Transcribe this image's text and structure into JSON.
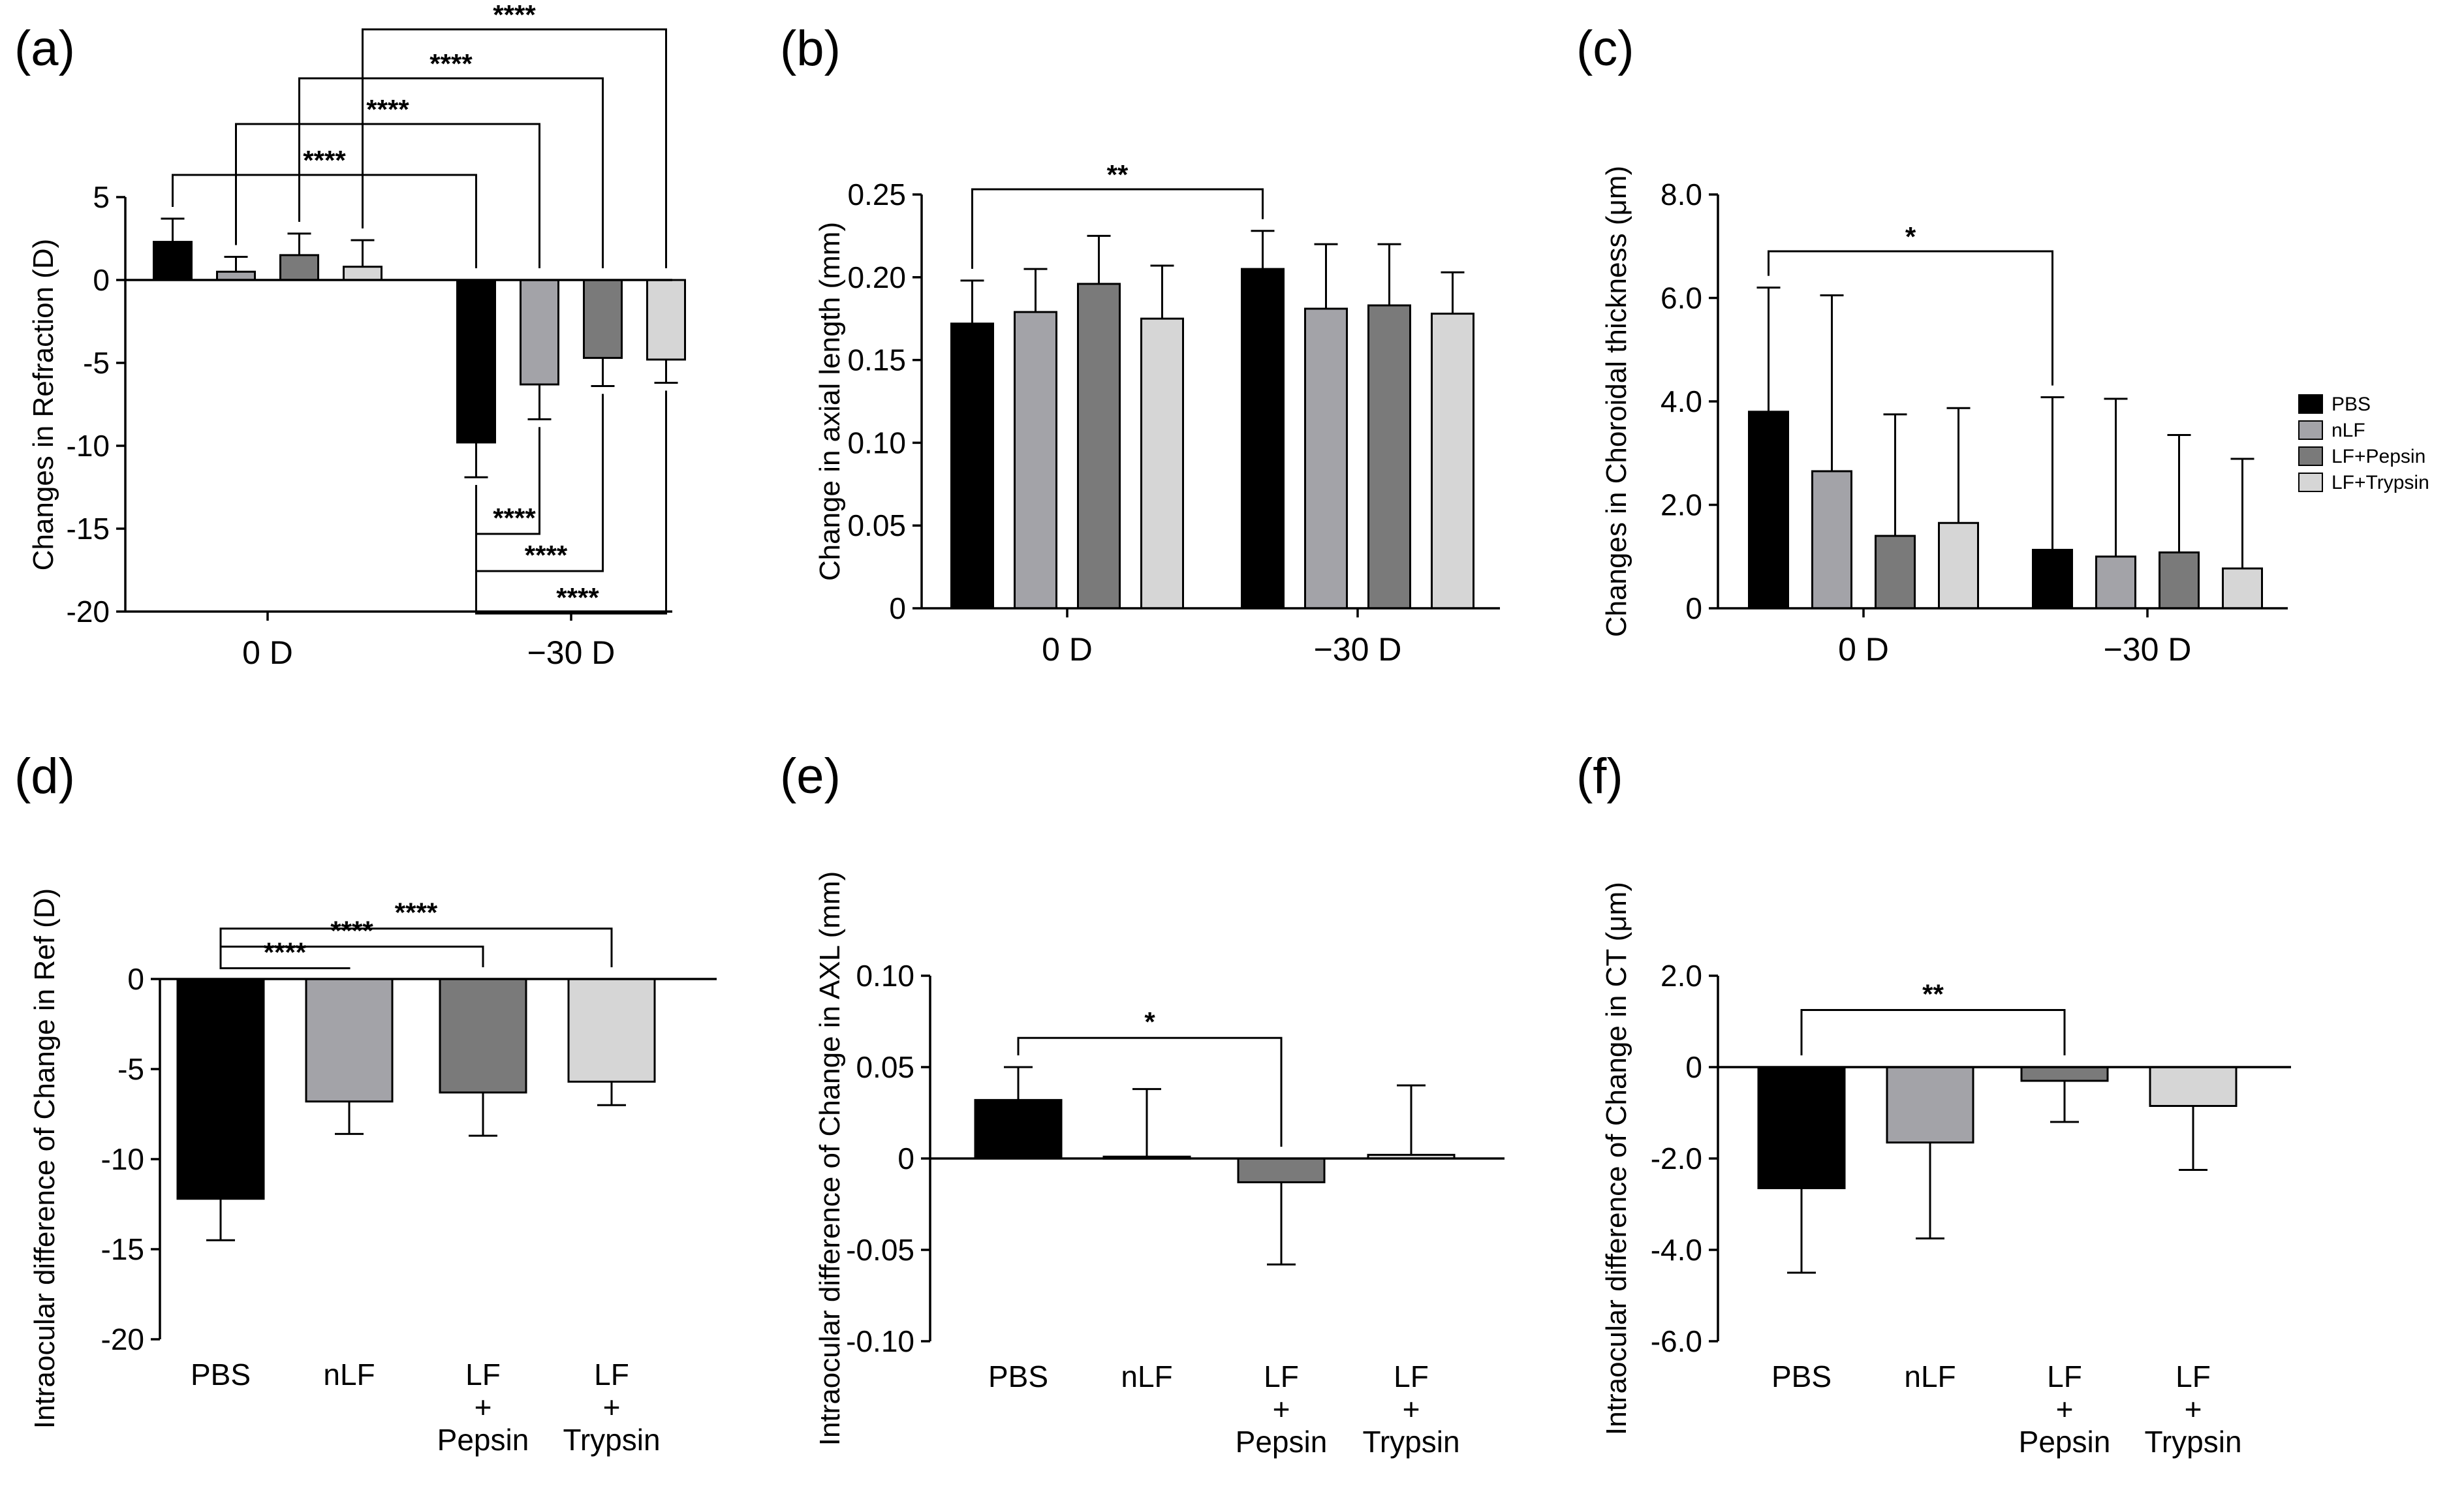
{
  "colors": {
    "PBS": "#000000",
    "nLF": "#a3a3a8",
    "LF+Pepsin": "#7a7a7a",
    "LF+Trypsin": "#d6d6d6"
  },
  "legend": {
    "items": [
      {
        "label": "PBS",
        "key": "PBS"
      },
      {
        "label": "nLF",
        "key": "nLF"
      },
      {
        "label": "LF+Pepsin",
        "key": "LF+Pepsin"
      },
      {
        "label": "LF+Trypsin",
        "key": "LF+Trypsin"
      }
    ]
  },
  "chart_data": [
    {
      "id": "a",
      "panel_label": "(a)",
      "type": "bar",
      "ylabel": "Changes in Refraction (D)",
      "ylim": [
        -20,
        5
      ],
      "yticks": [
        5,
        0,
        -5,
        -10,
        -15,
        -20
      ],
      "ytick_labels": [
        "5",
        "0",
        "-5",
        "-10",
        "-15",
        "-20"
      ],
      "groups": [
        "0 D",
        "−30 D"
      ],
      "series": [
        {
          "name": "PBS",
          "values": [
            2.3,
            -9.8
          ],
          "errors": [
            1.4,
            2.1
          ]
        },
        {
          "name": "nLF",
          "values": [
            0.5,
            -6.3
          ],
          "errors": [
            0.9,
            2.1
          ]
        },
        {
          "name": "LF+Pepsin",
          "values": [
            1.5,
            -4.7
          ],
          "errors": [
            1.3,
            1.7
          ]
        },
        {
          "name": "LF+Trypsin",
          "values": [
            0.8,
            -4.8
          ],
          "errors": [
            1.6,
            1.4
          ]
        }
      ],
      "significance": [
        {
          "from": [
            0,
            0
          ],
          "to": [
            1,
            0
          ],
          "label": "****",
          "side": "top"
        },
        {
          "from": [
            0,
            1
          ],
          "to": [
            1,
            1
          ],
          "label": "****",
          "side": "top"
        },
        {
          "from": [
            0,
            2
          ],
          "to": [
            1,
            2
          ],
          "label": "****",
          "side": "top"
        },
        {
          "from": [
            0,
            3
          ],
          "to": [
            1,
            3
          ],
          "label": "****",
          "side": "top"
        },
        {
          "from": [
            1,
            0
          ],
          "to": [
            1,
            1
          ],
          "label": "****",
          "side": "bottom"
        },
        {
          "from": [
            1,
            0
          ],
          "to": [
            1,
            2
          ],
          "label": "****",
          "side": "bottom"
        },
        {
          "from": [
            1,
            0
          ],
          "to": [
            1,
            3
          ],
          "label": "****",
          "side": "bottom"
        }
      ]
    },
    {
      "id": "b",
      "panel_label": "(b)",
      "type": "bar",
      "ylabel": "Change in axial length (mm)",
      "ylim": [
        0,
        0.25
      ],
      "yticks": [
        0.25,
        0.2,
        0.15,
        0.1,
        0.05,
        0
      ],
      "ytick_labels": [
        "0.25",
        "0.20",
        "0.15",
        "0.10",
        "0.05",
        "0"
      ],
      "groups": [
        "0 D",
        "−30 D"
      ],
      "series": [
        {
          "name": "PBS",
          "values": [
            0.172,
            0.205
          ],
          "errors": [
            0.026,
            0.023
          ]
        },
        {
          "name": "nLF",
          "values": [
            0.179,
            0.181
          ],
          "errors": [
            0.026,
            0.039
          ]
        },
        {
          "name": "LF+Pepsin",
          "values": [
            0.196,
            0.183
          ],
          "errors": [
            0.029,
            0.037
          ]
        },
        {
          "name": "LF+Trypsin",
          "values": [
            0.175,
            0.178
          ],
          "errors": [
            0.032,
            0.025
          ]
        }
      ],
      "significance": [
        {
          "from": [
            0,
            0
          ],
          "to": [
            1,
            0
          ],
          "label": "**",
          "side": "top"
        }
      ]
    },
    {
      "id": "c",
      "panel_label": "(c)",
      "type": "bar",
      "ylabel": "Changes in Choroidal thickness (μm)",
      "ylim": [
        0,
        8
      ],
      "yticks": [
        8,
        6,
        4,
        2,
        0
      ],
      "ytick_labels": [
        "8.0",
        "6.0",
        "4.0",
        "2.0",
        "0"
      ],
      "groups": [
        "0 D",
        "−30 D"
      ],
      "series": [
        {
          "name": "PBS",
          "values": [
            3.8,
            1.13
          ],
          "errors": [
            2.4,
            2.95
          ]
        },
        {
          "name": "nLF",
          "values": [
            2.65,
            1.0
          ],
          "errors": [
            3.4,
            3.05
          ]
        },
        {
          "name": "LF+Pepsin",
          "values": [
            1.4,
            1.08
          ],
          "errors": [
            2.35,
            2.27
          ]
        },
        {
          "name": "LF+Trypsin",
          "values": [
            1.65,
            0.77
          ],
          "errors": [
            2.22,
            2.12
          ]
        }
      ],
      "significance": [
        {
          "from": [
            0,
            0
          ],
          "to": [
            1,
            0
          ],
          "label": "*",
          "side": "top"
        }
      ]
    },
    {
      "id": "d",
      "panel_label": "(d)",
      "type": "bar",
      "ylabel": "Intraocular difference of Change in Ref (D)",
      "ylim": [
        -20,
        0
      ],
      "yticks": [
        0,
        -5,
        -10,
        -15,
        -20
      ],
      "ytick_labels": [
        "0",
        "-5",
        "-10",
        "-15",
        "-20"
      ],
      "categories": [
        [
          "PBS"
        ],
        [
          "nLF"
        ],
        [
          "LF",
          "+",
          "Pepsin"
        ],
        [
          "LF",
          "+",
          "Trypsin"
        ]
      ],
      "keys": [
        "PBS",
        "nLF",
        "LF+Pepsin",
        "LF+Trypsin"
      ],
      "values": [
        -12.2,
        -6.8,
        -6.3,
        -5.7
      ],
      "errors": [
        2.3,
        1.8,
        2.4,
        1.3
      ],
      "significance": [
        {
          "from": 0,
          "to": 1,
          "label": "****",
          "y": 0.6
        },
        {
          "from": 0,
          "to": 2,
          "label": "****",
          "y": 1.8
        },
        {
          "from": 0,
          "to": 3,
          "label": "****",
          "y": 2.8
        }
      ]
    },
    {
      "id": "e",
      "panel_label": "(e)",
      "type": "bar",
      "ylabel": "Intraocular difference of Change in AXL (mm)",
      "ylim": [
        -0.1,
        0.1
      ],
      "yticks": [
        0.1,
        0.05,
        0,
        -0.05,
        -0.1
      ],
      "ytick_labels": [
        "0.10",
        "0.05",
        "0",
        "-0.05",
        "-0.10"
      ],
      "categories": [
        [
          "PBS"
        ],
        [
          "nLF"
        ],
        [
          "LF",
          "+",
          "Pepsin"
        ],
        [
          "LF",
          "+",
          "Trypsin"
        ]
      ],
      "keys": [
        "PBS",
        "nLF",
        "LF+Pepsin",
        "LF+Trypsin"
      ],
      "values": [
        0.032,
        0.001,
        -0.013,
        0.002
      ],
      "errors": [
        0.018,
        0.037,
        0.045,
        0.038
      ],
      "significance": [
        {
          "from": 0,
          "to": 2,
          "label": "*",
          "y": 0.066
        }
      ]
    },
    {
      "id": "f",
      "panel_label": "(f)",
      "type": "bar",
      "ylabel": "Intraocular difference of Change in CT (μm)",
      "ylim": [
        -6,
        2
      ],
      "yticks": [
        2,
        0,
        -2,
        -4,
        -6
      ],
      "ytick_labels": [
        "2.0",
        "0",
        "-2.0",
        "-4.0",
        "-6.0"
      ],
      "categories": [
        [
          "PBS"
        ],
        [
          "nLF"
        ],
        [
          "LF",
          "+",
          "Pepsin"
        ],
        [
          "LF",
          "+",
          "Trypsin"
        ]
      ],
      "keys": [
        "PBS",
        "nLF",
        "LF+Pepsin",
        "LF+Trypsin"
      ],
      "values": [
        -2.65,
        -1.65,
        -0.3,
        -0.85
      ],
      "errors": [
        1.85,
        2.1,
        0.9,
        1.4
      ],
      "significance": [
        {
          "from": 0,
          "to": 2,
          "label": "**",
          "y": 1.25
        }
      ]
    }
  ]
}
